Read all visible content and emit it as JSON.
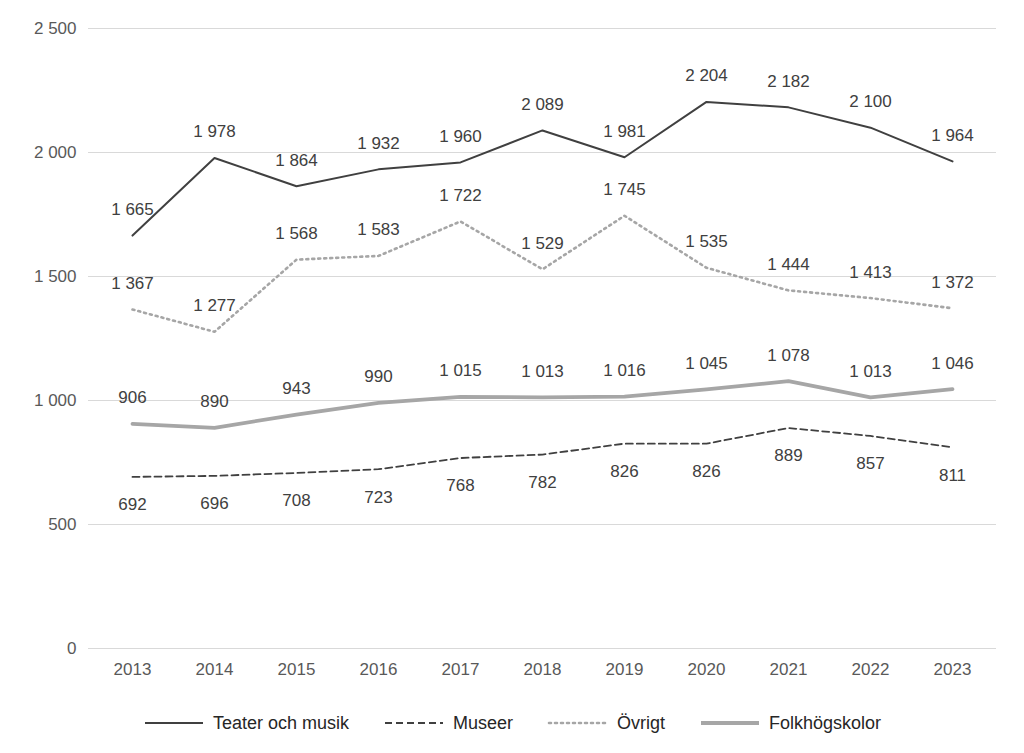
{
  "chart_data": {
    "type": "line",
    "categories": [
      "2013",
      "2014",
      "2015",
      "2016",
      "2017",
      "2018",
      "2019",
      "2020",
      "2021",
      "2022",
      "2023"
    ],
    "series": [
      {
        "name": "Teater och musik",
        "color": "#404040",
        "line_style": "solid",
        "values": [
          1665,
          1978,
          1864,
          1932,
          1960,
          2089,
          1981,
          2204,
          2182,
          2100,
          1964
        ],
        "value_labels": [
          "1 665",
          "1 978",
          "1 864",
          "1 932",
          "1 960",
          "2 089",
          "1 981",
          "2 204",
          "2 182",
          "2 100",
          "1 964"
        ]
      },
      {
        "name": "Museer",
        "color": "#404040",
        "line_style": "dashed",
        "values": [
          692,
          696,
          708,
          723,
          768,
          782,
          826,
          826,
          889,
          857,
          811
        ]
      },
      {
        "name": "Övrigt",
        "color": "#a6a6a6",
        "line_style": "dotted",
        "values": [
          1367,
          1277,
          1568,
          1583,
          1722,
          1529,
          1745,
          1535,
          1444,
          1413,
          1372
        ],
        "value_labels": [
          "1 367",
          "1 277",
          "1 568",
          "1 583",
          "1 722",
          "1 529",
          "1 745",
          "1 535",
          "1 444",
          "1 413",
          "1 372"
        ]
      },
      {
        "name": "Folkhögskolor",
        "color": "#a6a6a6",
        "line_style": "solid",
        "values": [
          906,
          890,
          943,
          990,
          1015,
          1013,
          1016,
          1045,
          1078,
          1013,
          1046
        ],
        "value_labels": [
          "906",
          "890",
          "943",
          "990",
          "1 015",
          "1 013",
          "1 016",
          "1 045",
          "1 078",
          "1 013",
          "1 046"
        ]
      }
    ],
    "ylim": [
      0,
      2500
    ],
    "yticks": [
      0,
      500,
      {
        "value": 1000,
        "label": "1 000"
      },
      {
        "value": 1500,
        "label": "1 500"
      },
      {
        "value": 2000,
        "label": "2 000"
      },
      {
        "value": 2500,
        "label": "2 500"
      }
    ],
    "grid": true,
    "data_labels": true,
    "legend": "bottom"
  }
}
